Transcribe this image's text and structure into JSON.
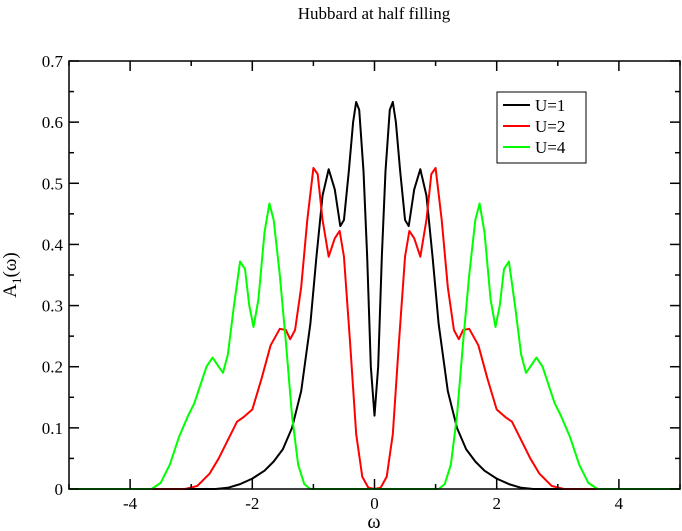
{
  "chart_data": {
    "type": "line",
    "title": "Hubbard at half filling",
    "xlabel": "ω",
    "ylabel_main": "A",
    "ylabel_sub": "1",
    "ylabel_tail": "(ω)",
    "xlim": [
      -5,
      5
    ],
    "ylim": [
      0,
      0.7
    ],
    "xticks": [
      -4,
      -2,
      0,
      2,
      4
    ],
    "yticks": [
      0,
      0.1,
      0.2,
      0.3,
      0.4,
      0.5,
      0.6,
      0.7
    ],
    "ytick_labels": [
      "0",
      "0.1",
      "0.2",
      "0.3",
      "0.4",
      "0.5",
      "0.6",
      "0.7"
    ],
    "grid": false,
    "legend_position": "top-right",
    "series": [
      {
        "name": "U=1",
        "color": "#000000",
        "points": [
          [
            -5,
            0
          ],
          [
            -2.6,
            0
          ],
          [
            -2.4,
            0.002
          ],
          [
            -2.2,
            0.008
          ],
          [
            -2.0,
            0.017
          ],
          [
            -1.8,
            0.03
          ],
          [
            -1.65,
            0.045
          ],
          [
            -1.5,
            0.065
          ],
          [
            -1.35,
            0.1
          ],
          [
            -1.2,
            0.16
          ],
          [
            -1.05,
            0.27
          ],
          [
            -0.95,
            0.38
          ],
          [
            -0.85,
            0.48
          ],
          [
            -0.75,
            0.523
          ],
          [
            -0.65,
            0.49
          ],
          [
            -0.56,
            0.43
          ],
          [
            -0.5,
            0.44
          ],
          [
            -0.42,
            0.52
          ],
          [
            -0.35,
            0.6
          ],
          [
            -0.3,
            0.633
          ],
          [
            -0.25,
            0.62
          ],
          [
            -0.18,
            0.52
          ],
          [
            -0.12,
            0.38
          ],
          [
            -0.06,
            0.2
          ],
          [
            0,
            0.12
          ],
          [
            0.06,
            0.2
          ],
          [
            0.12,
            0.38
          ],
          [
            0.18,
            0.52
          ],
          [
            0.25,
            0.62
          ],
          [
            0.3,
            0.633
          ],
          [
            0.35,
            0.6
          ],
          [
            0.42,
            0.52
          ],
          [
            0.5,
            0.44
          ],
          [
            0.56,
            0.43
          ],
          [
            0.65,
            0.49
          ],
          [
            0.75,
            0.523
          ],
          [
            0.85,
            0.48
          ],
          [
            0.95,
            0.38
          ],
          [
            1.05,
            0.27
          ],
          [
            1.2,
            0.16
          ],
          [
            1.35,
            0.1
          ],
          [
            1.5,
            0.065
          ],
          [
            1.65,
            0.045
          ],
          [
            1.8,
            0.03
          ],
          [
            2.0,
            0.017
          ],
          [
            2.2,
            0.008
          ],
          [
            2.4,
            0.002
          ],
          [
            2.6,
            0
          ],
          [
            5,
            0
          ]
        ]
      },
      {
        "name": "U=2",
        "color": "#ff0000",
        "points": [
          [
            -5,
            0
          ],
          [
            -3.1,
            0
          ],
          [
            -2.9,
            0.005
          ],
          [
            -2.7,
            0.025
          ],
          [
            -2.55,
            0.05
          ],
          [
            -2.4,
            0.08
          ],
          [
            -2.25,
            0.11
          ],
          [
            -2.15,
            0.117
          ],
          [
            -2.0,
            0.13
          ],
          [
            -1.85,
            0.18
          ],
          [
            -1.7,
            0.235
          ],
          [
            -1.55,
            0.262
          ],
          [
            -1.45,
            0.26
          ],
          [
            -1.38,
            0.245
          ],
          [
            -1.3,
            0.26
          ],
          [
            -1.2,
            0.33
          ],
          [
            -1.1,
            0.44
          ],
          [
            -1.0,
            0.525
          ],
          [
            -0.93,
            0.515
          ],
          [
            -0.85,
            0.44
          ],
          [
            -0.75,
            0.38
          ],
          [
            -0.65,
            0.41
          ],
          [
            -0.57,
            0.422
          ],
          [
            -0.5,
            0.38
          ],
          [
            -0.4,
            0.24
          ],
          [
            -0.3,
            0.09
          ],
          [
            -0.2,
            0.02
          ],
          [
            -0.1,
            0.002
          ],
          [
            0,
            0
          ],
          [
            0.1,
            0.002
          ],
          [
            0.2,
            0.02
          ],
          [
            0.3,
            0.09
          ],
          [
            0.4,
            0.24
          ],
          [
            0.5,
            0.38
          ],
          [
            0.57,
            0.422
          ],
          [
            0.65,
            0.41
          ],
          [
            0.75,
            0.38
          ],
          [
            0.85,
            0.44
          ],
          [
            0.93,
            0.515
          ],
          [
            1.0,
            0.525
          ],
          [
            1.1,
            0.44
          ],
          [
            1.2,
            0.33
          ],
          [
            1.3,
            0.26
          ],
          [
            1.38,
            0.245
          ],
          [
            1.45,
            0.26
          ],
          [
            1.55,
            0.262
          ],
          [
            1.7,
            0.235
          ],
          [
            1.85,
            0.18
          ],
          [
            2.0,
            0.13
          ],
          [
            2.15,
            0.117
          ],
          [
            2.25,
            0.11
          ],
          [
            2.4,
            0.08
          ],
          [
            2.55,
            0.05
          ],
          [
            2.7,
            0.025
          ],
          [
            2.9,
            0.005
          ],
          [
            3.1,
            0
          ],
          [
            5,
            0
          ]
        ]
      },
      {
        "name": "U=4",
        "color": "#00ff00",
        "points": [
          [
            -5,
            0
          ],
          [
            -3.65,
            0
          ],
          [
            -3.5,
            0.01
          ],
          [
            -3.35,
            0.04
          ],
          [
            -3.2,
            0.085
          ],
          [
            -3.05,
            0.12
          ],
          [
            -2.95,
            0.14
          ],
          [
            -2.85,
            0.17
          ],
          [
            -2.75,
            0.2
          ],
          [
            -2.65,
            0.215
          ],
          [
            -2.55,
            0.2
          ],
          [
            -2.48,
            0.19
          ],
          [
            -2.4,
            0.22
          ],
          [
            -2.3,
            0.3
          ],
          [
            -2.2,
            0.372
          ],
          [
            -2.12,
            0.36
          ],
          [
            -2.05,
            0.3
          ],
          [
            -1.98,
            0.265
          ],
          [
            -1.9,
            0.31
          ],
          [
            -1.8,
            0.42
          ],
          [
            -1.72,
            0.467
          ],
          [
            -1.65,
            0.44
          ],
          [
            -1.55,
            0.35
          ],
          [
            -1.45,
            0.24
          ],
          [
            -1.35,
            0.12
          ],
          [
            -1.25,
            0.04
          ],
          [
            -1.15,
            0.008
          ],
          [
            -1.05,
            0
          ],
          [
            1.05,
            0
          ],
          [
            1.15,
            0.008
          ],
          [
            1.25,
            0.04
          ],
          [
            1.35,
            0.12
          ],
          [
            1.45,
            0.24
          ],
          [
            1.55,
            0.35
          ],
          [
            1.65,
            0.44
          ],
          [
            1.72,
            0.467
          ],
          [
            1.8,
            0.42
          ],
          [
            1.9,
            0.31
          ],
          [
            1.98,
            0.265
          ],
          [
            2.05,
            0.3
          ],
          [
            2.12,
            0.36
          ],
          [
            2.2,
            0.372
          ],
          [
            2.3,
            0.3
          ],
          [
            2.4,
            0.22
          ],
          [
            2.48,
            0.19
          ],
          [
            2.55,
            0.2
          ],
          [
            2.65,
            0.215
          ],
          [
            2.75,
            0.2
          ],
          [
            2.85,
            0.17
          ],
          [
            2.95,
            0.14
          ],
          [
            3.05,
            0.12
          ],
          [
            3.2,
            0.085
          ],
          [
            3.35,
            0.04
          ],
          [
            3.5,
            0.01
          ],
          [
            3.65,
            0
          ],
          [
            5,
            0
          ]
        ]
      }
    ]
  }
}
